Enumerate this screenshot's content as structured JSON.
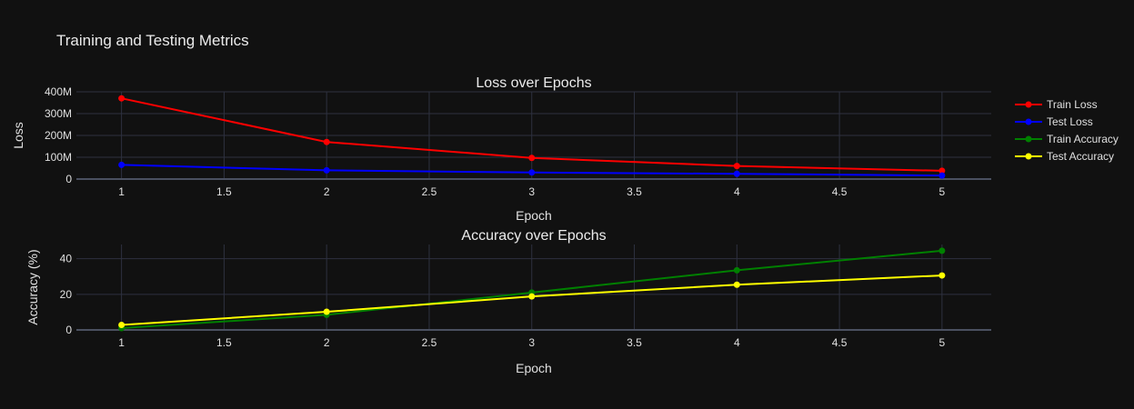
{
  "title": "Training and Testing Metrics",
  "colors": {
    "background": "#111111",
    "grid": "#2e3140",
    "axis_line": "#4a5060",
    "text": "#e0e0e0"
  },
  "chart_data": [
    {
      "type": "line",
      "title": "Loss over Epochs",
      "xlabel": "Epoch",
      "ylabel": "Loss",
      "xlim": [
        0.78,
        5.24
      ],
      "ylim": [
        0,
        400000000
      ],
      "xticks": [
        1,
        1.5,
        2,
        2.5,
        3,
        3.5,
        4,
        4.5,
        5
      ],
      "xtick_labels": [
        "1",
        "1.5",
        "2",
        "2.5",
        "3",
        "3.5",
        "4",
        "4.5",
        "5"
      ],
      "yticks": [
        0,
        100000000,
        200000000,
        300000000,
        400000000
      ],
      "ytick_labels": [
        "0",
        "100M",
        "200M",
        "300M",
        "400M"
      ],
      "x": [
        1,
        2,
        3,
        4,
        5
      ],
      "series": [
        {
          "name": "Train Loss",
          "color": "#ff0000",
          "values": [
            370000000,
            170000000,
            97000000,
            60000000,
            38000000
          ]
        },
        {
          "name": "Test Loss",
          "color": "#0000ff",
          "values": [
            65000000,
            40000000,
            30000000,
            24000000,
            16000000
          ]
        }
      ]
    },
    {
      "type": "line",
      "title": "Accuracy over Epochs",
      "xlabel": "Epoch",
      "ylabel": "Accuracy (%)",
      "xlim": [
        0.78,
        5.24
      ],
      "ylim": [
        0,
        48
      ],
      "xticks": [
        1,
        1.5,
        2,
        2.5,
        3,
        3.5,
        4,
        4.5,
        5
      ],
      "xtick_labels": [
        "1",
        "1.5",
        "2",
        "2.5",
        "3",
        "3.5",
        "4",
        "4.5",
        "5"
      ],
      "yticks": [
        0,
        20,
        40
      ],
      "ytick_labels": [
        "0",
        "20",
        "40"
      ],
      "x": [
        1,
        2,
        3,
        4,
        5
      ],
      "series": [
        {
          "name": "Train Accuracy",
          "color": "#008000",
          "values": [
            1.0,
            8.5,
            21.0,
            33.5,
            44.5
          ]
        },
        {
          "name": "Test Accuracy",
          "color": "#ffff00",
          "values": [
            2.8,
            10.2,
            18.8,
            25.4,
            30.6
          ]
        }
      ]
    }
  ],
  "legend": {
    "position": "right",
    "items": [
      {
        "name": "Train Loss",
        "color": "#ff0000"
      },
      {
        "name": "Test Loss",
        "color": "#0000ff"
      },
      {
        "name": "Train Accuracy",
        "color": "#008000"
      },
      {
        "name": "Test Accuracy",
        "color": "#ffff00"
      }
    ]
  }
}
